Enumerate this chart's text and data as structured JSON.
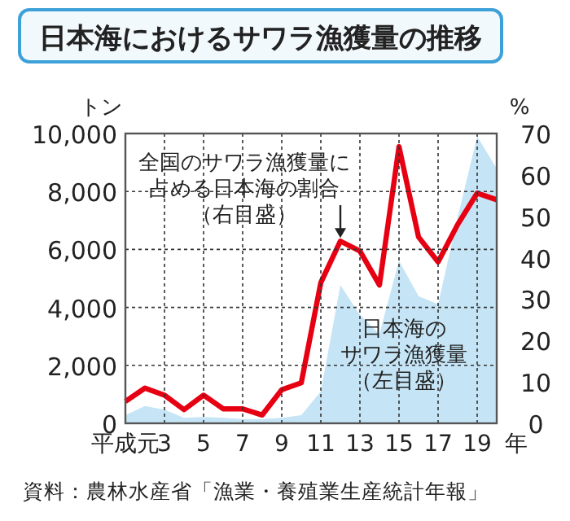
{
  "chart_data": {
    "type": "line",
    "title": "日本海におけるサワラ漁獲量の推移",
    "ylabel": "トン",
    "y2label": "%",
    "xlabel": "年",
    "x": [
      1,
      2,
      3,
      4,
      5,
      6,
      7,
      8,
      9,
      10,
      11,
      12,
      13,
      14,
      15,
      16,
      17,
      18,
      19,
      20
    ],
    "xlim": [
      1,
      20
    ],
    "xticks": [
      {
        "value": 1,
        "label": "平成元"
      },
      3,
      5,
      7,
      9,
      11,
      13,
      15,
      17,
      19
    ],
    "ylim": [
      0,
      10000
    ],
    "yticks": [
      {
        "value": 0,
        "label": "0"
      },
      {
        "value": 2000,
        "label": "2,000"
      },
      {
        "value": 4000,
        "label": "4,000"
      },
      {
        "value": 6000,
        "label": "6,000"
      },
      {
        "value": 8000,
        "label": "8,000"
      },
      {
        "value": 10000,
        "label": "10,000"
      }
    ],
    "y2lim": [
      0,
      70
    ],
    "y2ticks": [
      0,
      10,
      20,
      30,
      40,
      50,
      60,
      70
    ],
    "series": [
      {
        "name": "日本海のサワラ漁獲量（左目盛）",
        "type": "area",
        "color": "#c5e5f6",
        "values": [
          280,
          600,
          470,
          190,
          220,
          190,
          150,
          150,
          190,
          280,
          1100,
          4770,
          3740,
          3080,
          5610,
          4390,
          4110,
          7100,
          9900,
          8790
        ]
      },
      {
        "name": "全国のサワラ漁獲量に占める日本海の割合（右目盛）",
        "type": "line",
        "axis": "y2",
        "color": "#e60012",
        "values": [
          5.3,
          8.5,
          6.8,
          3.3,
          6.8,
          3.5,
          3.5,
          2,
          8.1,
          9.8,
          34,
          44,
          41.6,
          33.4,
          66.8,
          45,
          39,
          48,
          55.6,
          54
        ]
      }
    ],
    "grid": true,
    "legend": false,
    "marker": "none",
    "line_style": "solid",
    "annotations": [
      "資料：農林水産省「漁業・養殖業生産統計年報」"
    ]
  }
}
